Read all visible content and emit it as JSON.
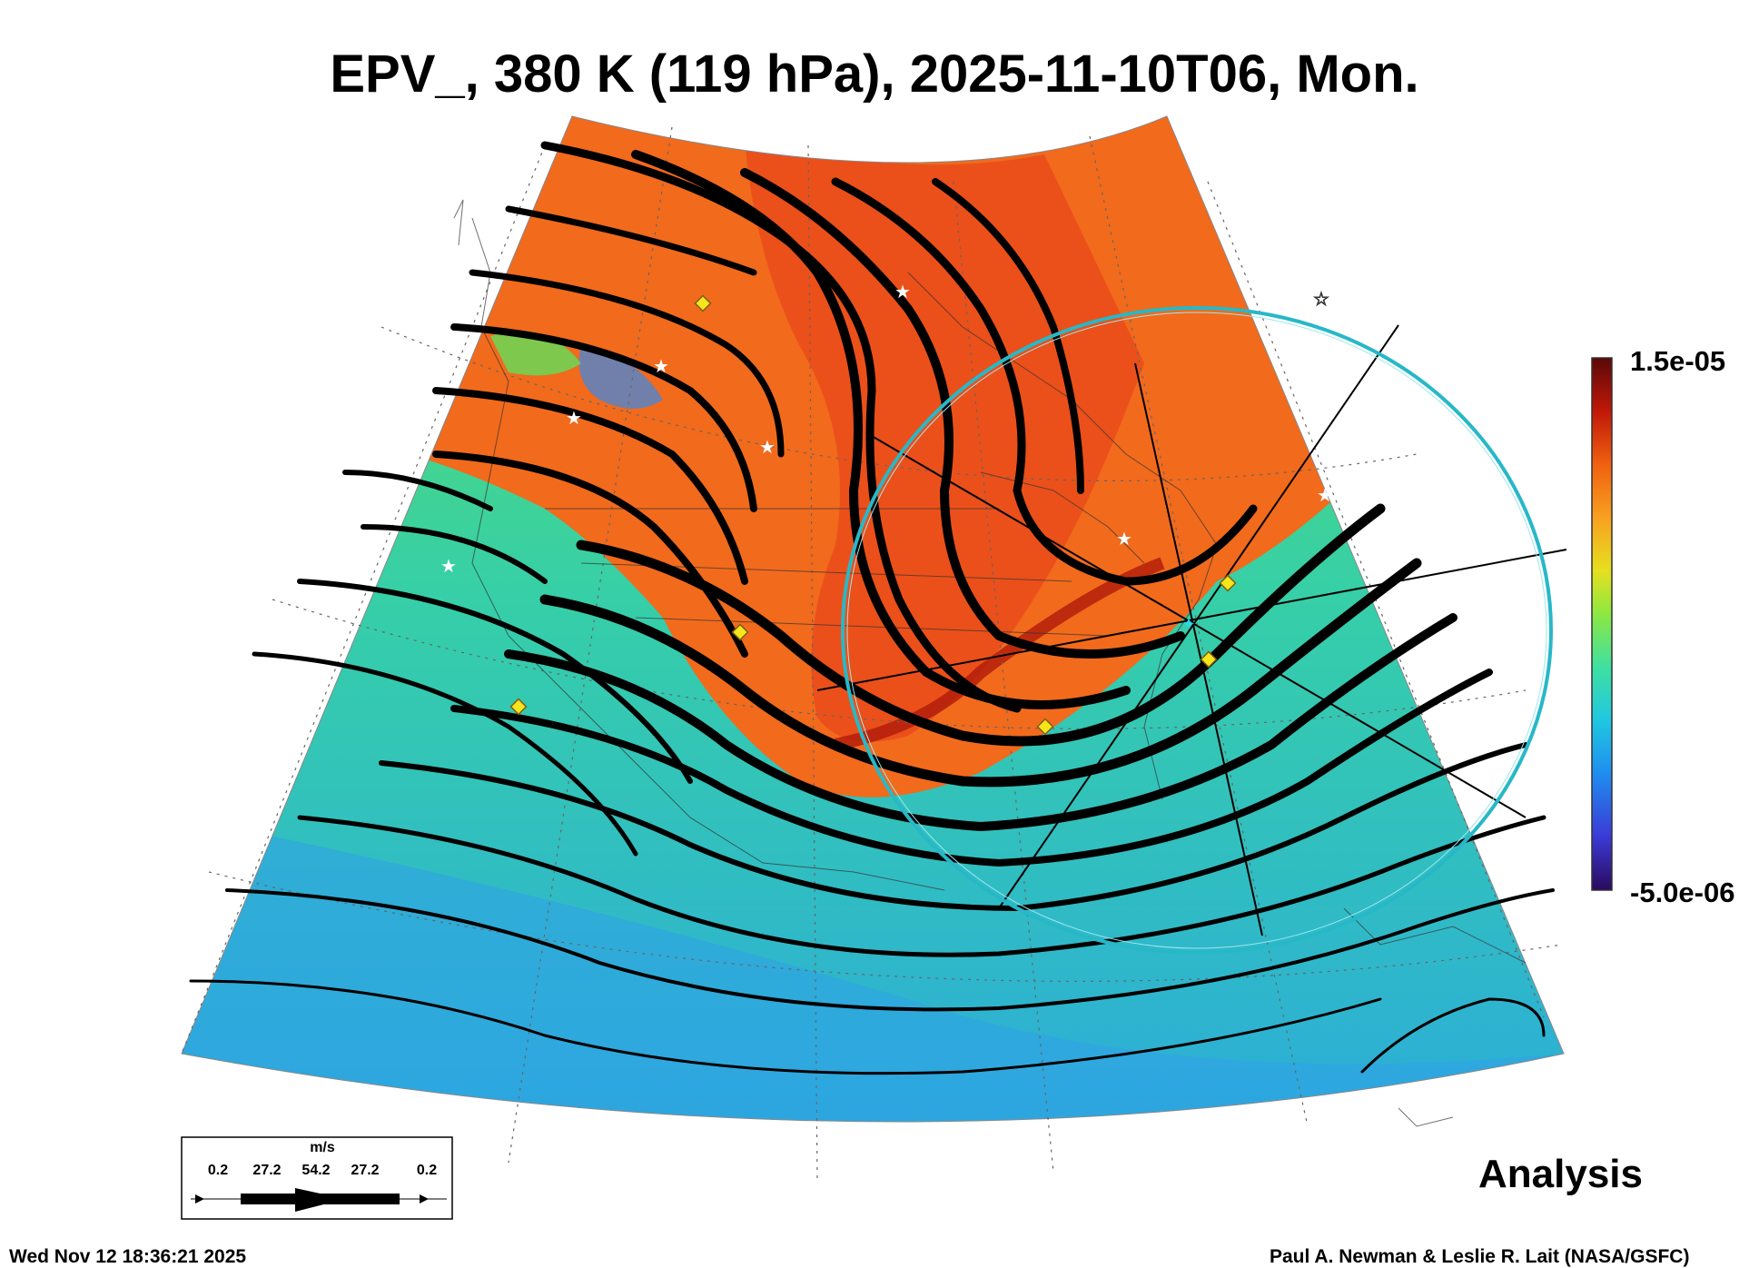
{
  "title": "EPV_, 380 K (119 hPa), 2025-11-10T06, Mon.",
  "colorbar": {
    "max_label": "1.5e-05",
    "min_label": "-5.0e-06",
    "colors": [
      "#2a0a5e",
      "#3a3ad6",
      "#1f8ef0",
      "#20c8e0",
      "#3fe0a0",
      "#8ee840",
      "#e6e020",
      "#f8a020",
      "#f06010",
      "#c01808",
      "#5a0808"
    ]
  },
  "field_colors": {
    "high": "#f26a1c",
    "high_deep": "#d83412",
    "mid": "#5fe05a",
    "low": "#2bc0d8",
    "lowest": "#3c6cf0"
  },
  "wind_legend": {
    "unit": "m/s",
    "labels": [
      "0.2",
      "27.2",
      "54.2",
      "27.2",
      "0.2"
    ]
  },
  "analysis_label": "Analysis",
  "timestamp": "Wed Nov 12 18:36:21 2025",
  "credit": "Paul A. Newman & Leslie R. Lait (NASA/GSFC)",
  "overlay_colors": {
    "circle": "#27b8c8",
    "streamline": "#000000",
    "marker": "#f6e51c",
    "station": "#ffffff"
  }
}
